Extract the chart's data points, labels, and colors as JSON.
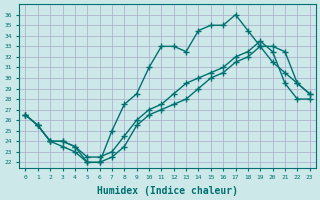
{
  "xlabel": "Humidex (Indice chaleur)",
  "ylabel": "",
  "background_color": "#cce8e8",
  "grid_color": "#aaaacc",
  "line_color": "#007070",
  "xlim": [
    -0.5,
    23.5
  ],
  "ylim": [
    21.5,
    37
  ],
  "xticks": [
    0,
    1,
    2,
    3,
    4,
    5,
    6,
    7,
    8,
    9,
    10,
    11,
    12,
    13,
    14,
    15,
    16,
    17,
    18,
    19,
    20,
    21,
    22,
    23
  ],
  "yticks": [
    22,
    23,
    24,
    25,
    26,
    27,
    28,
    29,
    30,
    31,
    32,
    33,
    34,
    35,
    36
  ],
  "line1_x": [
    0,
    1,
    2,
    3,
    4,
    5,
    6,
    7,
    8,
    9,
    10,
    11,
    12,
    13,
    14,
    15,
    16,
    17,
    18,
    19,
    20,
    21,
    22,
    23
  ],
  "line1_y": [
    26.5,
    25.5,
    24.0,
    24.0,
    23.5,
    22.0,
    22.0,
    25.0,
    27.5,
    28.5,
    31.0,
    33.0,
    33.0,
    32.5,
    34.5,
    35.0,
    35.0,
    36.0,
    34.5,
    33.0,
    31.5,
    30.5,
    29.5,
    28.5
  ],
  "line2_x": [
    0,
    1,
    2,
    3,
    4,
    5,
    6,
    7,
    8,
    9,
    10,
    11,
    12,
    13,
    14,
    15,
    16,
    17,
    18,
    19,
    20,
    21,
    22,
    23
  ],
  "line2_y": [
    26.5,
    25.5,
    24.0,
    23.5,
    23.0,
    22.0,
    22.0,
    22.5,
    23.5,
    25.5,
    26.5,
    27.0,
    27.5,
    28.0,
    29.0,
    30.0,
    30.5,
    31.5,
    32.0,
    33.0,
    33.0,
    32.5,
    29.5,
    28.5
  ],
  "line3_x": [
    0,
    1,
    2,
    3,
    4,
    5,
    6,
    7,
    8,
    9,
    10,
    11,
    12,
    13,
    14,
    15,
    16,
    17,
    18,
    19,
    20,
    21,
    22,
    23
  ],
  "line3_y": [
    26.5,
    25.5,
    24.0,
    24.0,
    23.5,
    22.5,
    22.5,
    23.0,
    24.5,
    26.0,
    27.0,
    27.5,
    28.5,
    29.5,
    30.0,
    30.5,
    31.0,
    32.0,
    32.5,
    33.5,
    32.5,
    29.5,
    28.0,
    28.0
  ]
}
